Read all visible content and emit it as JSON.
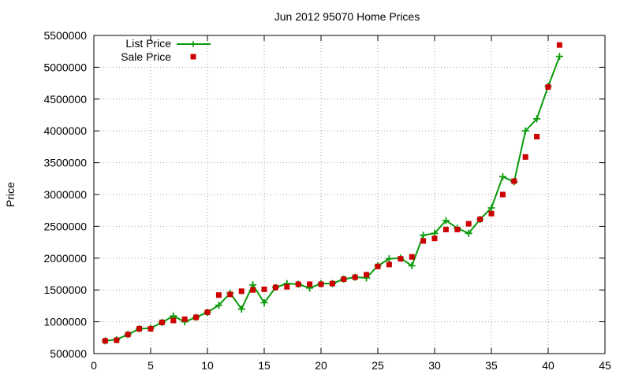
{
  "chart_data": {
    "type": "line",
    "title": "Jun 2012 95070 Home Prices",
    "xlabel": "",
    "ylabel": "Price",
    "xlim": [
      0,
      45
    ],
    "ylim": [
      500000,
      5500000
    ],
    "x_ticks": [
      0,
      5,
      10,
      15,
      20,
      25,
      30,
      35,
      40,
      45
    ],
    "y_ticks": [
      500000,
      1000000,
      1500000,
      2000000,
      2500000,
      3000000,
      3500000,
      4000000,
      4500000,
      5000000,
      5500000
    ],
    "grid": true,
    "legend_position": "top-left",
    "series": [
      {
        "name": "List Price",
        "style": "line-with-plus-markers",
        "color": "#0a9a0a",
        "x": [
          1,
          2,
          3,
          4,
          5,
          6,
          7,
          8,
          9,
          10,
          11,
          12,
          13,
          14,
          15,
          16,
          17,
          18,
          19,
          20,
          21,
          22,
          23,
          24,
          25,
          26,
          27,
          28,
          29,
          30,
          31,
          32,
          33,
          34,
          35,
          36,
          37,
          38,
          39,
          40,
          41
        ],
        "values": [
          700000,
          720000,
          800000,
          890000,
          900000,
          990000,
          1090000,
          1000000,
          1070000,
          1150000,
          1260000,
          1450000,
          1200000,
          1580000,
          1300000,
          1540000,
          1600000,
          1590000,
          1530000,
          1600000,
          1600000,
          1670000,
          1700000,
          1690000,
          1880000,
          1990000,
          2000000,
          1880000,
          2360000,
          2390000,
          2590000,
          2470000,
          2390000,
          2610000,
          2790000,
          3280000,
          3200000,
          4000000,
          4190000,
          4700000,
          5170000
        ]
      },
      {
        "name": "Sale Price",
        "style": "square-markers",
        "color": "#cc0000",
        "x": [
          1,
          2,
          3,
          4,
          5,
          6,
          7,
          8,
          9,
          10,
          11,
          12,
          13,
          14,
          15,
          16,
          17,
          18,
          19,
          20,
          21,
          22,
          23,
          24,
          25,
          26,
          27,
          28,
          29,
          30,
          31,
          32,
          33,
          34,
          35,
          36,
          37,
          38,
          39,
          40,
          41
        ],
        "values": [
          700000,
          710000,
          800000,
          890000,
          890000,
          990000,
          1020000,
          1040000,
          1070000,
          1150000,
          1420000,
          1430000,
          1480000,
          1500000,
          1510000,
          1540000,
          1550000,
          1590000,
          1590000,
          1590000,
          1600000,
          1670000,
          1700000,
          1740000,
          1870000,
          1900000,
          1990000,
          2020000,
          2270000,
          2310000,
          2450000,
          2450000,
          2540000,
          2610000,
          2700000,
          3000000,
          3210000,
          3590000,
          3910000,
          4690000,
          5350000
        ]
      }
    ]
  }
}
